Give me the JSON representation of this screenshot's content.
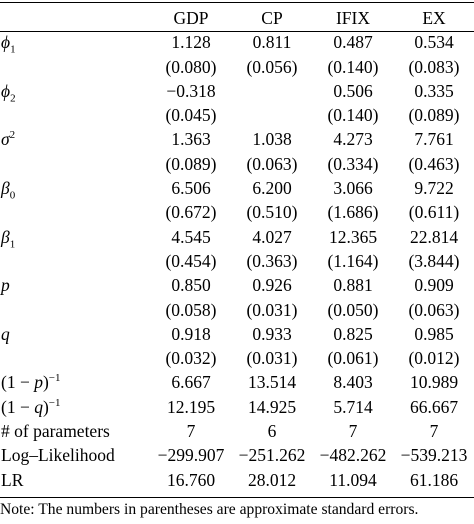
{
  "headers": [
    "",
    "GDP",
    "CP",
    "IFIX",
    "EX"
  ],
  "rows": [
    {
      "label": "ϕ1",
      "values": [
        "1.128",
        "0.811",
        "0.487",
        "0.534"
      ]
    },
    {
      "label": "",
      "values": [
        "(0.080)",
        "(0.056)",
        "(0.140)",
        "(0.083)"
      ]
    },
    {
      "label": "ϕ2",
      "values": [
        "−0.318",
        "",
        "0.506",
        "0.335"
      ]
    },
    {
      "label": "",
      "values": [
        "(0.045)",
        "",
        "(0.140)",
        "(0.089)"
      ]
    },
    {
      "label": "σ2",
      "values": [
        "1.363",
        "1.038",
        "4.273",
        "7.761"
      ]
    },
    {
      "label": "",
      "values": [
        "(0.089)",
        "(0.063)",
        "(0.334)",
        "(0.463)"
      ]
    },
    {
      "label": "β0",
      "values": [
        "6.506",
        "6.200",
        "3.066",
        "9.722"
      ]
    },
    {
      "label": "",
      "values": [
        "(0.672)",
        "(0.510)",
        "(1.686)",
        "(0.611)"
      ]
    },
    {
      "label": "β1",
      "values": [
        "4.545",
        "4.027",
        "12.365",
        "22.814"
      ]
    },
    {
      "label": "",
      "values": [
        "(0.454)",
        "(0.363)",
        "(1.164)",
        "(3.844)"
      ]
    },
    {
      "label": "p",
      "values": [
        "0.850",
        "0.926",
        "0.881",
        "0.909"
      ]
    },
    {
      "label": "",
      "values": [
        "(0.058)",
        "(0.031)",
        "(0.050)",
        "(0.063)"
      ]
    },
    {
      "label": "q",
      "values": [
        "0.918",
        "0.933",
        "0.825",
        "0.985"
      ]
    },
    {
      "label": "",
      "values": [
        "(0.032)",
        "(0.031)",
        "(0.061)",
        "(0.012)"
      ]
    },
    {
      "label": "(1 − p)−1",
      "values": [
        "6.667",
        "13.514",
        "8.403",
        "10.989"
      ]
    },
    {
      "label": "(1 − q)−1",
      "values": [
        "12.195",
        "14.925",
        "5.714",
        "66.667"
      ]
    },
    {
      "label": "# of parameters",
      "values": [
        "7",
        "6",
        "7",
        "7"
      ]
    },
    {
      "label": "Log–Likelihood",
      "values": [
        "−299.907",
        "−251.262",
        "−482.262",
        "−539.213"
      ]
    },
    {
      "label": "LR",
      "values": [
        "16.760",
        "28.012",
        "11.094",
        "61.186"
      ]
    }
  ],
  "note": "Note: The numbers in parentheses are approximate standard errors."
}
